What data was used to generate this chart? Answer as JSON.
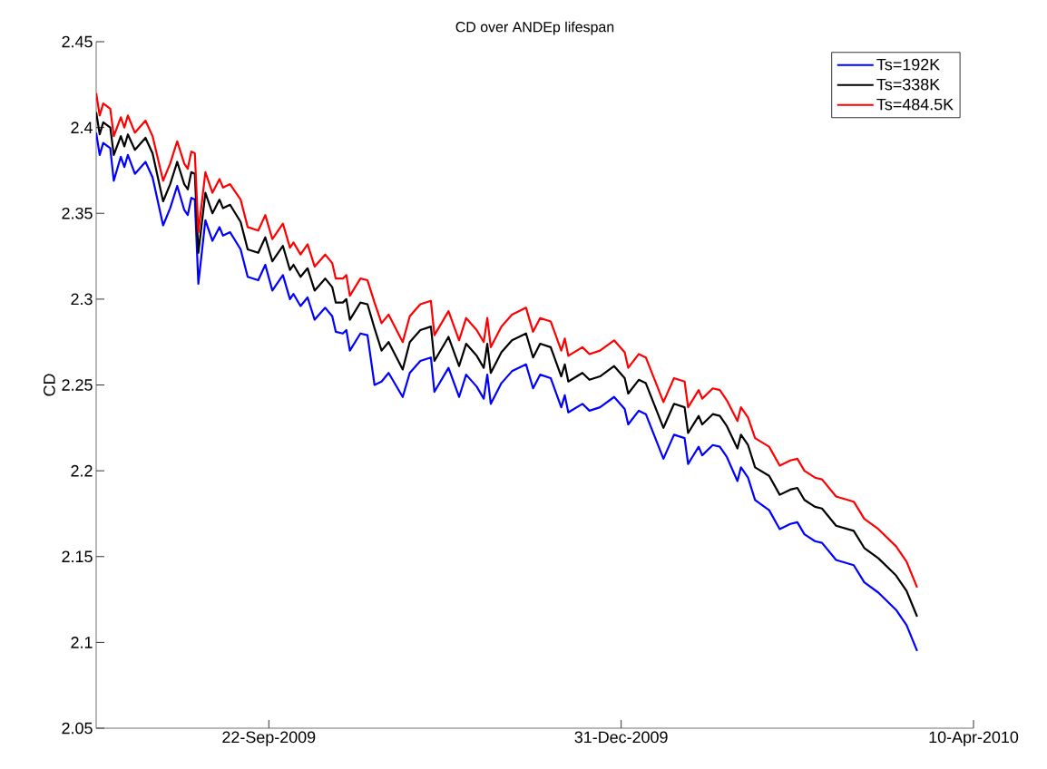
{
  "chart_data": {
    "type": "line",
    "title": "CD over ANDEp lifespan",
    "ylabel": "CD",
    "x": [
      "2009-08-04",
      "2009-08-05",
      "2009-08-06",
      "2009-08-08",
      "2009-08-09",
      "2009-08-11",
      "2009-08-12",
      "2009-08-13",
      "2009-08-15",
      "2009-08-18",
      "2009-08-20",
      "2009-08-23",
      "2009-08-25",
      "2009-08-27",
      "2009-08-29",
      "2009-08-30",
      "2009-08-31",
      "2009-09-01",
      "2009-09-02",
      "2009-09-04",
      "2009-09-06",
      "2009-09-08",
      "2009-09-09",
      "2009-09-11",
      "2009-09-14",
      "2009-09-16",
      "2009-09-19",
      "2009-09-21",
      "2009-09-23",
      "2009-09-26",
      "2009-09-28",
      "2009-09-29",
      "2009-10-01",
      "2009-10-03",
      "2009-10-05",
      "2009-10-08",
      "2009-10-10",
      "2009-10-11",
      "2009-10-13",
      "2009-10-14",
      "2009-10-15",
      "2009-10-18",
      "2009-10-20",
      "2009-10-22",
      "2009-10-24",
      "2009-10-26",
      "2009-10-30",
      "2009-11-01",
      "2009-11-04",
      "2009-11-07",
      "2009-11-08",
      "2009-11-12",
      "2009-11-15",
      "2009-11-17",
      "2009-11-20",
      "2009-11-22",
      "2009-11-23",
      "2009-11-24",
      "2009-11-27",
      "2009-11-30",
      "2009-12-04",
      "2009-12-06",
      "2009-12-08",
      "2009-12-11",
      "2009-12-14",
      "2009-12-15",
      "2009-12-16",
      "2009-12-20",
      "2009-12-22",
      "2009-12-25",
      "2009-12-29",
      "2010-01-01",
      "2010-01-02",
      "2010-01-05",
      "2010-01-07",
      "2010-01-12",
      "2010-01-15",
      "2010-01-18",
      "2010-01-19",
      "2010-01-22",
      "2010-01-23",
      "2010-01-26",
      "2010-01-28",
      "2010-01-30",
      "2010-02-02",
      "2010-02-03",
      "2010-02-05",
      "2010-02-07",
      "2010-02-11",
      "2010-02-14",
      "2010-02-17",
      "2010-02-19",
      "2010-02-21",
      "2010-02-24",
      "2010-02-26",
      "2010-03-02",
      "2010-03-07",
      "2010-03-10",
      "2010-03-14",
      "2010-03-19",
      "2010-03-22",
      "2010-03-25"
    ],
    "series": [
      {
        "name": "Ts=192K",
        "color": "#0000ff",
        "values": [
          2.397,
          2.384,
          2.391,
          2.388,
          2.369,
          2.383,
          2.377,
          2.384,
          2.373,
          2.38,
          2.371,
          2.343,
          2.353,
          2.366,
          2.352,
          2.349,
          2.359,
          2.358,
          2.309,
          2.346,
          2.334,
          2.342,
          2.337,
          2.339,
          2.329,
          2.313,
          2.311,
          2.32,
          2.305,
          2.314,
          2.3,
          2.303,
          2.296,
          2.301,
          2.288,
          2.295,
          2.29,
          2.281,
          2.28,
          2.282,
          2.27,
          2.28,
          2.279,
          2.25,
          2.252,
          2.257,
          2.243,
          2.257,
          2.264,
          2.266,
          2.246,
          2.26,
          2.243,
          2.256,
          2.249,
          2.242,
          2.256,
          2.239,
          2.251,
          2.258,
          2.262,
          2.248,
          2.256,
          2.254,
          2.237,
          2.244,
          2.234,
          2.239,
          2.235,
          2.237,
          2.243,
          2.236,
          2.227,
          2.235,
          2.233,
          2.207,
          2.221,
          2.219,
          2.204,
          2.214,
          2.209,
          2.215,
          2.214,
          2.208,
          2.194,
          2.202,
          2.196,
          2.183,
          2.177,
          2.166,
          2.169,
          2.17,
          2.163,
          2.159,
          2.158,
          2.148,
          2.145,
          2.135,
          2.129,
          2.119,
          2.11,
          2.095
        ]
      },
      {
        "name": "Ts=338K",
        "color": "#000000",
        "values": [
          2.409,
          2.396,
          2.403,
          2.4,
          2.384,
          2.395,
          2.389,
          2.396,
          2.387,
          2.394,
          2.385,
          2.357,
          2.367,
          2.38,
          2.367,
          2.364,
          2.374,
          2.373,
          2.327,
          2.362,
          2.35,
          2.358,
          2.353,
          2.355,
          2.345,
          2.329,
          2.327,
          2.336,
          2.322,
          2.331,
          2.317,
          2.32,
          2.313,
          2.318,
          2.305,
          2.312,
          2.307,
          2.298,
          2.298,
          2.3,
          2.288,
          2.298,
          2.297,
          2.283,
          2.27,
          2.275,
          2.259,
          2.275,
          2.282,
          2.284,
          2.264,
          2.278,
          2.261,
          2.274,
          2.267,
          2.26,
          2.274,
          2.257,
          2.269,
          2.276,
          2.28,
          2.266,
          2.274,
          2.272,
          2.255,
          2.262,
          2.252,
          2.257,
          2.253,
          2.255,
          2.261,
          2.254,
          2.245,
          2.253,
          2.251,
          2.225,
          2.239,
          2.237,
          2.222,
          2.232,
          2.227,
          2.233,
          2.232,
          2.226,
          2.213,
          2.221,
          2.215,
          2.202,
          2.197,
          2.186,
          2.189,
          2.19,
          2.183,
          2.179,
          2.178,
          2.168,
          2.165,
          2.155,
          2.149,
          2.139,
          2.13,
          2.115
        ]
      },
      {
        "name": "Ts=484.5K",
        "color": "#ff0000",
        "values": [
          2.42,
          2.407,
          2.414,
          2.411,
          2.395,
          2.406,
          2.4,
          2.407,
          2.397,
          2.404,
          2.395,
          2.369,
          2.379,
          2.392,
          2.379,
          2.376,
          2.386,
          2.385,
          2.339,
          2.374,
          2.362,
          2.37,
          2.365,
          2.367,
          2.358,
          2.342,
          2.34,
          2.349,
          2.335,
          2.344,
          2.33,
          2.333,
          2.326,
          2.332,
          2.319,
          2.326,
          2.321,
          2.312,
          2.312,
          2.314,
          2.302,
          2.312,
          2.311,
          2.298,
          2.286,
          2.291,
          2.275,
          2.29,
          2.297,
          2.299,
          2.279,
          2.293,
          2.276,
          2.289,
          2.282,
          2.275,
          2.289,
          2.272,
          2.284,
          2.291,
          2.295,
          2.281,
          2.289,
          2.287,
          2.27,
          2.277,
          2.267,
          2.272,
          2.268,
          2.27,
          2.276,
          2.269,
          2.26,
          2.268,
          2.266,
          2.24,
          2.254,
          2.252,
          2.237,
          2.247,
          2.242,
          2.248,
          2.247,
          2.241,
          2.229,
          2.237,
          2.231,
          2.219,
          2.214,
          2.203,
          2.206,
          2.207,
          2.2,
          2.196,
          2.195,
          2.185,
          2.182,
          2.172,
          2.166,
          2.156,
          2.147,
          2.132
        ]
      }
    ],
    "xlim": [
      "2009-08-04",
      "2010-04-10"
    ],
    "xticks": [
      {
        "value": "2009-09-22",
        "label": "22-Sep-2009"
      },
      {
        "value": "2009-12-31",
        "label": "31-Dec-2009"
      },
      {
        "value": "2010-04-10",
        "label": "10-Apr-2010"
      }
    ],
    "ylim": [
      2.05,
      2.45
    ],
    "yticks": [
      2.05,
      2.1,
      2.15,
      2.2,
      2.25,
      2.3,
      2.35,
      2.4,
      2.45
    ],
    "legend": "top right",
    "grid": false,
    "marker": "none",
    "line_style": "solid"
  }
}
